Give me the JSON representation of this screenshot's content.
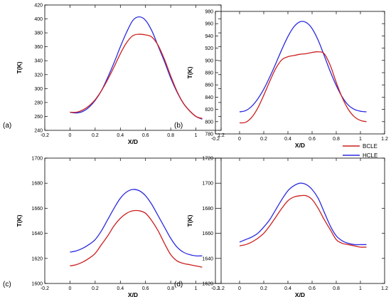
{
  "colors": {
    "BCLE": "#cc1f1f",
    "HCLE": "#2a2ae0"
  },
  "legend": [
    {
      "name": "BCLE",
      "color": "#cc1f1f"
    },
    {
      "name": "HCLE",
      "color": "#2a2ae0"
    }
  ],
  "chart_data": [
    {
      "panel_label": "(a)",
      "type": "line",
      "xlabel": "X/D",
      "ylabel": "T(K)",
      "xlim": [
        -0.2,
        1.2
      ],
      "ylim": [
        240,
        420
      ],
      "xticks": [
        "-0.2",
        "0",
        "0.2",
        "0.4",
        "0.6",
        "0.8",
        "1",
        "1.2"
      ],
      "yticks": [
        "240",
        "260",
        "280",
        "300",
        "320",
        "340",
        "360",
        "380",
        "400",
        "420"
      ],
      "grid": false,
      "series": [
        {
          "name": "BCLE",
          "x": [
            0,
            0.05,
            0.1,
            0.15,
            0.2,
            0.25,
            0.3,
            0.35,
            0.4,
            0.45,
            0.5,
            0.55,
            0.6,
            0.65,
            0.7,
            0.75,
            0.8,
            0.85,
            0.9,
            0.95,
            1.0,
            1.05
          ],
          "y": [
            266,
            266,
            269,
            275,
            284,
            297,
            313,
            331,
            350,
            366,
            376,
            378,
            377,
            374,
            362,
            342,
            318,
            296,
            279,
            268,
            260,
            257
          ]
        },
        {
          "name": "HCLE",
          "x": [
            0,
            0.05,
            0.1,
            0.15,
            0.2,
            0.25,
            0.3,
            0.35,
            0.4,
            0.45,
            0.5,
            0.55,
            0.6,
            0.65,
            0.7,
            0.75,
            0.8,
            0.85,
            0.9,
            0.95,
            1.0,
            1.05
          ],
          "y": [
            266,
            265,
            267,
            273,
            283,
            297,
            316,
            337,
            360,
            381,
            398,
            403,
            398,
            383,
            361,
            339,
            315,
            295,
            279,
            268,
            260,
            256
          ]
        }
      ]
    },
    {
      "panel_label": "(b)",
      "type": "line",
      "xlabel": "X/D",
      "ylabel": "T(K)",
      "xlim": [
        -0.2,
        1.2
      ],
      "ylim": [
        780,
        980
      ],
      "xticks": [
        "-0.2",
        "0",
        "0.2",
        "0.4",
        "0.6",
        "0.8",
        "1",
        "1.2"
      ],
      "yticks": [
        "780",
        "800",
        "820",
        "840",
        "860",
        "880",
        "900",
        "920",
        "940",
        "960",
        "980"
      ],
      "grid": false,
      "series": [
        {
          "name": "BCLE",
          "x": [
            0,
            0.05,
            0.1,
            0.15,
            0.2,
            0.25,
            0.3,
            0.35,
            0.4,
            0.45,
            0.5,
            0.55,
            0.6,
            0.65,
            0.7,
            0.75,
            0.8,
            0.85,
            0.9,
            0.95,
            1.0,
            1.05
          ],
          "y": [
            798,
            799,
            807,
            822,
            843,
            866,
            887,
            901,
            906,
            908,
            910,
            911,
            913,
            914,
            911,
            892,
            864,
            839,
            820,
            808,
            802,
            800
          ]
        },
        {
          "name": "HCLE",
          "x": [
            0,
            0.05,
            0.1,
            0.15,
            0.2,
            0.25,
            0.3,
            0.35,
            0.4,
            0.45,
            0.5,
            0.55,
            0.6,
            0.65,
            0.7,
            0.75,
            0.8,
            0.85,
            0.9,
            0.95,
            1.0,
            1.05
          ],
          "y": [
            816,
            818,
            825,
            837,
            853,
            873,
            895,
            918,
            939,
            955,
            963,
            962,
            952,
            933,
            908,
            882,
            859,
            840,
            827,
            820,
            817,
            816
          ]
        }
      ]
    },
    {
      "panel_label": "(c)",
      "type": "line",
      "xlabel": "X/D",
      "ylabel": "T(K)",
      "xlim": [
        -0.2,
        1.2
      ],
      "ylim": [
        1600,
        1700
      ],
      "xticks": [
        "-0.2",
        "0",
        "0.2",
        "0.4",
        "0.6",
        "0.8",
        "1",
        "1.2"
      ],
      "yticks": [
        "1600",
        "1620",
        "1640",
        "1660",
        "1680",
        "1700"
      ],
      "grid": false,
      "series": [
        {
          "name": "BCLE",
          "x": [
            0,
            0.05,
            0.1,
            0.15,
            0.2,
            0.25,
            0.3,
            0.35,
            0.4,
            0.45,
            0.5,
            0.55,
            0.6,
            0.65,
            0.7,
            0.75,
            0.8,
            0.85,
            0.9,
            0.95,
            1.0,
            1.05
          ],
          "y": [
            1614,
            1615,
            1617,
            1620,
            1624,
            1631,
            1638,
            1646,
            1652,
            1656,
            1658,
            1658,
            1656,
            1650,
            1642,
            1632,
            1623,
            1618,
            1616,
            1615,
            1614,
            1613
          ]
        },
        {
          "name": "HCLE",
          "x": [
            0,
            0.05,
            0.1,
            0.15,
            0.2,
            0.25,
            0.3,
            0.35,
            0.4,
            0.45,
            0.5,
            0.55,
            0.6,
            0.65,
            0.7,
            0.75,
            0.8,
            0.85,
            0.9,
            0.95,
            1.0,
            1.05
          ],
          "y": [
            1625,
            1626,
            1628,
            1631,
            1635,
            1642,
            1651,
            1660,
            1668,
            1673,
            1675,
            1674,
            1670,
            1663,
            1654,
            1645,
            1636,
            1629,
            1625,
            1623,
            1622,
            1622
          ]
        }
      ]
    },
    {
      "panel_label": "(d)",
      "type": "line",
      "xlabel": "X/D",
      "ylabel": "T(K)",
      "xlim": [
        -0.2,
        1.2
      ],
      "ylim": [
        1620,
        1720
      ],
      "xticks": [
        "-0.2",
        "0",
        "0.2",
        "0.4",
        "0.6",
        "0.8",
        "1",
        "1.2"
      ],
      "yticks": [
        "1620",
        "1640",
        "1660",
        "1680",
        "1700",
        "1720"
      ],
      "grid": false,
      "series": [
        {
          "name": "BCLE",
          "x": [
            0,
            0.05,
            0.1,
            0.15,
            0.2,
            0.25,
            0.3,
            0.35,
            0.4,
            0.45,
            0.5,
            0.55,
            0.6,
            0.65,
            0.7,
            0.75,
            0.8,
            0.85,
            0.9,
            0.95,
            1.0,
            1.05
          ],
          "y": [
            1650,
            1651,
            1653,
            1656,
            1660,
            1666,
            1673,
            1680,
            1686,
            1689,
            1690,
            1690,
            1687,
            1680,
            1671,
            1663,
            1655,
            1652,
            1651,
            1650,
            1649,
            1649
          ]
        },
        {
          "name": "HCLE",
          "x": [
            0,
            0.05,
            0.1,
            0.15,
            0.2,
            0.25,
            0.3,
            0.35,
            0.4,
            0.45,
            0.5,
            0.55,
            0.6,
            0.65,
            0.7,
            0.75,
            0.8,
            0.85,
            0.9,
            0.95,
            1.0,
            1.05
          ],
          "y": [
            1653,
            1655,
            1657,
            1660,
            1665,
            1671,
            1679,
            1687,
            1694,
            1698,
            1700,
            1699,
            1695,
            1688,
            1677,
            1666,
            1658,
            1654,
            1652,
            1651,
            1651,
            1651
          ]
        }
      ]
    }
  ]
}
